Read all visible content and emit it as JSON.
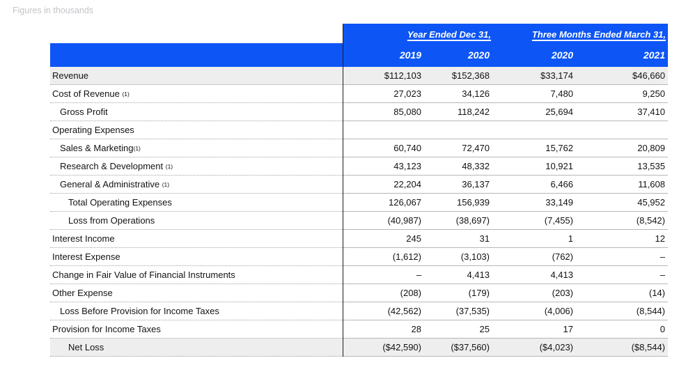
{
  "note": "Figures in thousands",
  "colors": {
    "accent_blue": "#0d55f5",
    "stripe": "#eeeeef"
  },
  "table": {
    "header": {
      "group1": "Year Ended Dec 31,",
      "group2": "Three Months Ended March 31,",
      "years": [
        "2019",
        "2020",
        "2020",
        "2021"
      ]
    },
    "rows": [
      {
        "label": "Revenue",
        "note": "",
        "indent": 0,
        "shaded": true,
        "values": [
          "$112,103",
          "$152,368",
          "$33,174",
          "$46,660"
        ]
      },
      {
        "label": "Cost of Revenue ",
        "note": "(1)",
        "indent": 0,
        "shaded": false,
        "values": [
          "27,023",
          "34,126",
          "7,480",
          "9,250"
        ]
      },
      {
        "label": "Gross Profit",
        "note": "",
        "indent": 1,
        "shaded": false,
        "values": [
          "85,080",
          "118,242",
          "25,694",
          "37,410"
        ]
      },
      {
        "label": "Operating Expenses",
        "note": "",
        "indent": 0,
        "shaded": false,
        "values": [
          "",
          "",
          "",
          ""
        ]
      },
      {
        "label": "Sales & Marketing",
        "note": "(1)",
        "indent": 1,
        "shaded": false,
        "values": [
          "60,740",
          "72,470",
          "15,762",
          "20,809"
        ]
      },
      {
        "label": "Research & Development ",
        "note": "(1)",
        "indent": 1,
        "shaded": false,
        "values": [
          "43,123",
          "48,332",
          "10,921",
          "13,535"
        ]
      },
      {
        "label": "General & Administrative ",
        "note": "(1)",
        "indent": 1,
        "shaded": false,
        "values": [
          "22,204",
          "36,137",
          "6,466",
          "11,608"
        ]
      },
      {
        "label": "Total Operating Expenses",
        "note": "",
        "indent": 2,
        "shaded": false,
        "values": [
          "126,067",
          "156,939",
          "33,149",
          "45,952"
        ]
      },
      {
        "label": "Loss from Operations",
        "note": "",
        "indent": 2,
        "shaded": false,
        "values": [
          "(40,987)",
          "(38,697)",
          "(7,455)",
          "(8,542)"
        ]
      },
      {
        "label": "Interest Income",
        "note": "",
        "indent": 0,
        "shaded": false,
        "values": [
          "245",
          "31",
          "1",
          "12"
        ]
      },
      {
        "label": "Interest Expense",
        "note": "",
        "indent": 0,
        "shaded": false,
        "values": [
          "(1,612)",
          "(3,103)",
          "(762)",
          "–"
        ]
      },
      {
        "label": "Change in Fair Value of Financial Instruments",
        "note": "",
        "indent": 0,
        "shaded": false,
        "values": [
          "–",
          "4,413",
          "4,413",
          "–"
        ]
      },
      {
        "label": "Other Expense",
        "note": "",
        "indent": 0,
        "shaded": false,
        "values": [
          "(208)",
          "(179)",
          "(203)",
          "(14)"
        ]
      },
      {
        "label": "Loss Before Provision for Income Taxes",
        "note": "",
        "indent": 1,
        "shaded": false,
        "values": [
          "(42,562)",
          "(37,535)",
          "(4,006)",
          "(8,544)"
        ]
      },
      {
        "label": "Provision for Income Taxes",
        "note": "",
        "indent": 0,
        "shaded": false,
        "values": [
          "28",
          "25",
          "17",
          "0"
        ]
      },
      {
        "label": "Net Loss",
        "note": "",
        "indent": 2,
        "shaded": true,
        "values": [
          "($42,590)",
          "($37,560)",
          "($4,023)",
          "($8,544)"
        ]
      }
    ]
  }
}
